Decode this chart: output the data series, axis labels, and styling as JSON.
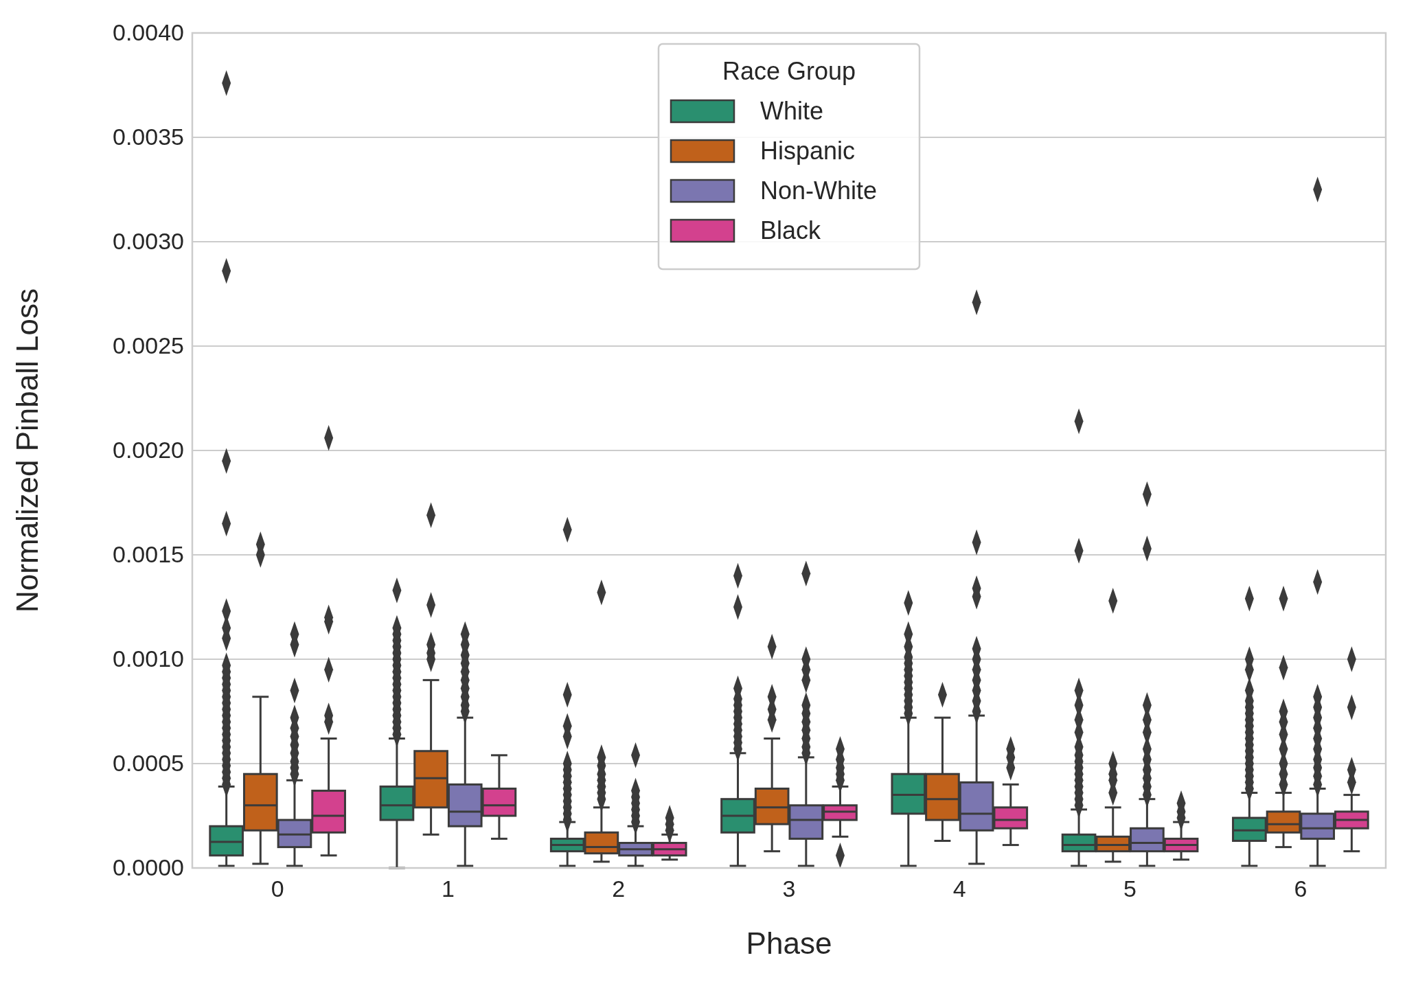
{
  "chart_data": {
    "type": "box",
    "xlabel": "Phase",
    "ylabel": "Normalized Pinball Loss",
    "legend_title": "Race Group",
    "legend": "top",
    "grid": "y",
    "marker": "diamond",
    "categories": [
      "0",
      "1",
      "2",
      "3",
      "4",
      "5",
      "6"
    ],
    "ylim": [
      0,
      0.004
    ],
    "yticks": [
      {
        "value": 0,
        "label": "0.0000"
      },
      {
        "value": 0.0005,
        "label": "0.0005"
      },
      {
        "value": 0.001,
        "label": "0.0010"
      },
      {
        "value": 0.0015,
        "label": "0.0015"
      },
      {
        "value": 0.002,
        "label": "0.0020"
      },
      {
        "value": 0.0025,
        "label": "0.0025"
      },
      {
        "value": 0.003,
        "label": "0.0030"
      },
      {
        "value": 0.0035,
        "label": "0.0035"
      },
      {
        "value": 0.004,
        "label": "0.0040"
      }
    ],
    "series": [
      {
        "name": "White",
        "color": "#2a8f6f",
        "boxes": [
          {
            "low": 1e-05,
            "q1": 6e-05,
            "median": 0.000125,
            "q3": 0.0002,
            "high": 0.00039,
            "outliers": [
              0.0004,
              0.00043,
              0.00046,
              0.00049,
              0.00052,
              0.00055,
              0.00058,
              0.00061,
              0.00064,
              0.00067,
              0.0007,
              0.00073,
              0.00076,
              0.00079,
              0.00082,
              0.00085,
              0.00088,
              0.00091,
              0.00094,
              0.00097,
              0.0011,
              0.00115,
              0.00123,
              0.00165,
              0.00195,
              0.00286,
              0.00376
            ]
          },
          {
            "low": 0.0,
            "q1": 0.00023,
            "median": 0.0003,
            "q3": 0.00039,
            "high": 0.00062,
            "outliers": [
              0.00064,
              0.00067,
              0.0007,
              0.00073,
              0.00076,
              0.00079,
              0.00082,
              0.00085,
              0.00088,
              0.00091,
              0.00094,
              0.00097,
              0.001,
              0.00103,
              0.00106,
              0.00109,
              0.00112,
              0.00115,
              0.00133
            ]
          },
          {
            "low": 1e-05,
            "q1": 8e-05,
            "median": 0.00011,
            "q3": 0.00014,
            "high": 0.00022,
            "outliers": [
              0.00023,
              0.00026,
              0.00029,
              0.00032,
              0.00035,
              0.00038,
              0.00041,
              0.00044,
              0.00047,
              0.0005,
              0.00063,
              0.00068,
              0.00083,
              0.00162
            ]
          },
          {
            "low": 1e-05,
            "q1": 0.00017,
            "median": 0.00025,
            "q3": 0.00033,
            "high": 0.00055,
            "outliers": [
              0.00057,
              0.0006,
              0.00063,
              0.00066,
              0.00069,
              0.00072,
              0.00075,
              0.00078,
              0.00081,
              0.00086,
              0.00125,
              0.0014
            ]
          },
          {
            "low": 1e-05,
            "q1": 0.00026,
            "median": 0.00035,
            "q3": 0.00045,
            "high": 0.00072,
            "outliers": [
              0.00074,
              0.00077,
              0.0008,
              0.00083,
              0.00086,
              0.00089,
              0.00092,
              0.00095,
              0.00098,
              0.00101,
              0.00106,
              0.00112,
              0.00127
            ]
          },
          {
            "low": 1e-05,
            "q1": 8e-05,
            "median": 0.00011,
            "q3": 0.00016,
            "high": 0.00028,
            "outliers": [
              0.0003,
              0.00033,
              0.00036,
              0.00039,
              0.00042,
              0.00045,
              0.00048,
              0.00051,
              0.00054,
              0.00058,
              0.00065,
              0.00071,
              0.00078,
              0.00085,
              0.00152,
              0.00214
            ]
          },
          {
            "low": 1e-05,
            "q1": 0.00013,
            "median": 0.00018,
            "q3": 0.00024,
            "high": 0.00036,
            "outliers": [
              0.00038,
              0.00041,
              0.00044,
              0.00047,
              0.0005,
              0.00053,
              0.00056,
              0.00059,
              0.00062,
              0.00065,
              0.00068,
              0.00071,
              0.00074,
              0.00077,
              0.0008,
              0.00085,
              0.00095,
              0.001,
              0.00129
            ]
          }
        ]
      },
      {
        "name": "Hispanic",
        "color": "#c0611b",
        "boxes": [
          {
            "low": 2e-05,
            "q1": 0.00018,
            "median": 0.0003,
            "q3": 0.00045,
            "high": 0.00082,
            "outliers": [
              0.0015,
              0.00155
            ]
          },
          {
            "low": 0.00016,
            "q1": 0.00029,
            "median": 0.00043,
            "q3": 0.00056,
            "high": 0.0009,
            "outliers": [
              0.001,
              0.00103,
              0.00107,
              0.00126,
              0.00169
            ]
          },
          {
            "low": 3e-05,
            "q1": 7e-05,
            "median": 0.0001,
            "q3": 0.00017,
            "high": 0.00029,
            "outliers": [
              0.00033,
              0.00036,
              0.00039,
              0.00042,
              0.00045,
              0.00049,
              0.00053,
              0.00132
            ]
          },
          {
            "low": 8e-05,
            "q1": 0.00021,
            "median": 0.00029,
            "q3": 0.00038,
            "high": 0.00062,
            "outliers": [
              0.00071,
              0.00076,
              0.00082,
              0.00106
            ]
          },
          {
            "low": 0.00013,
            "q1": 0.00023,
            "median": 0.00033,
            "q3": 0.00045,
            "high": 0.00072,
            "outliers": [
              0.00083
            ]
          },
          {
            "low": 3e-05,
            "q1": 8e-05,
            "median": 0.00011,
            "q3": 0.00015,
            "high": 0.00029,
            "outliers": [
              0.00036,
              0.00042,
              0.00045,
              0.0005,
              0.00128
            ]
          },
          {
            "low": 0.0001,
            "q1": 0.00017,
            "median": 0.00021,
            "q3": 0.00027,
            "high": 0.00036,
            "outliers": [
              0.0004,
              0.00045,
              0.0005,
              0.00057,
              0.00064,
              0.0007,
              0.00075,
              0.00096,
              0.00129
            ]
          }
        ]
      },
      {
        "name": "Non-White",
        "color": "#7b76b0",
        "boxes": [
          {
            "low": 1e-05,
            "q1": 0.0001,
            "median": 0.00016,
            "q3": 0.00023,
            "high": 0.00042,
            "outliers": [
              0.00045,
              0.00048,
              0.00051,
              0.00055,
              0.00059,
              0.00063,
              0.00067,
              0.00072,
              0.00085,
              0.00107,
              0.00112
            ]
          },
          {
            "low": 1e-05,
            "q1": 0.0002,
            "median": 0.00027,
            "q3": 0.0004,
            "high": 0.00072,
            "outliers": [
              0.00075,
              0.00078,
              0.00082,
              0.00086,
              0.0009,
              0.00094,
              0.00098,
              0.00102,
              0.00107,
              0.00112
            ]
          },
          {
            "low": 1e-05,
            "q1": 6e-05,
            "median": 9e-05,
            "q3": 0.00012,
            "high": 0.0002,
            "outliers": [
              0.00022,
              0.00025,
              0.00028,
              0.00031,
              0.00034,
              0.00037,
              0.00054
            ]
          },
          {
            "low": 1e-05,
            "q1": 0.00014,
            "median": 0.00023,
            "q3": 0.0003,
            "high": 0.00053,
            "outliers": [
              0.00055,
              0.00058,
              0.00062,
              0.00066,
              0.0007,
              0.00074,
              0.00078,
              0.0009,
              0.00095,
              0.001,
              0.00141
            ]
          },
          {
            "low": 2e-05,
            "q1": 0.00018,
            "median": 0.00026,
            "q3": 0.00041,
            "high": 0.00073,
            "outliers": [
              0.00075,
              0.0008,
              0.00085,
              0.0009,
              0.00095,
              0.001,
              0.00105,
              0.0013,
              0.00134,
              0.00156,
              0.00271
            ]
          },
          {
            "low": 1e-05,
            "q1": 8e-05,
            "median": 0.00012,
            "q3": 0.00019,
            "high": 0.00033,
            "outliers": [
              0.00035,
              0.00039,
              0.00043,
              0.00047,
              0.00052,
              0.00057,
              0.00065,
              0.00071,
              0.00078,
              0.00153,
              0.00179
            ]
          },
          {
            "low": 1e-05,
            "q1": 0.00014,
            "median": 0.00019,
            "q3": 0.00026,
            "high": 0.00038,
            "outliers": [
              0.0004,
              0.00044,
              0.00048,
              0.00052,
              0.00057,
              0.00062,
              0.00067,
              0.00072,
              0.00077,
              0.00082,
              0.00137,
              0.00325
            ]
          }
        ]
      },
      {
        "name": "Black",
        "color": "#d3418e",
        "boxes": [
          {
            "low": 6e-05,
            "q1": 0.00017,
            "median": 0.00025,
            "q3": 0.00037,
            "high": 0.00062,
            "outliers": [
              0.0007,
              0.00073,
              0.00095,
              0.00118,
              0.0012,
              0.00206
            ]
          },
          {
            "low": 0.00014,
            "q1": 0.00025,
            "median": 0.0003,
            "q3": 0.00038,
            "high": 0.00054
          },
          {
            "low": 4e-05,
            "q1": 6e-05,
            "median": 9e-05,
            "q3": 0.00012,
            "high": 0.00016,
            "outliers": [
              0.00018,
              0.00021,
              0.00024
            ]
          },
          {
            "low": 0.00015,
            "q1": 0.00023,
            "median": 0.00027,
            "q3": 0.0003,
            "high": 0.00039,
            "outliers": [
              6e-05,
              0.00042,
              0.00045,
              0.00048,
              0.00052,
              0.00057
            ]
          },
          {
            "low": 0.00011,
            "q1": 0.00019,
            "median": 0.00023,
            "q3": 0.00029,
            "high": 0.0004,
            "outliers": [
              0.00048,
              0.00053,
              0.00057
            ]
          },
          {
            "low": 4e-05,
            "q1": 8e-05,
            "median": 0.00011,
            "q3": 0.00014,
            "high": 0.00022,
            "outliers": [
              0.00024,
              0.00027,
              0.00031
            ]
          },
          {
            "low": 8e-05,
            "q1": 0.00019,
            "median": 0.00023,
            "q3": 0.00027,
            "high": 0.00035,
            "outliers": [
              0.00041,
              0.00047,
              0.00077,
              0.001
            ]
          }
        ]
      }
    ]
  }
}
